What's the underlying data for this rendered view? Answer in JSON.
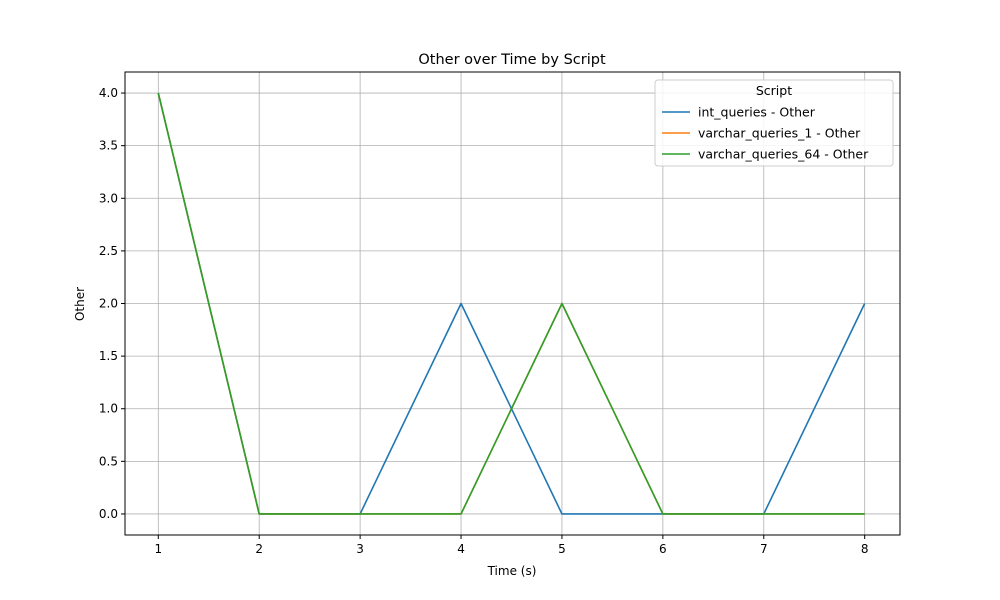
{
  "chart_data": {
    "type": "line",
    "title": "Other over Time by Script",
    "xlabel": "Time (s)",
    "ylabel": "Other",
    "xlim": [
      0.67,
      8.35
    ],
    "ylim": [
      -0.2,
      4.2
    ],
    "xticks": [
      "1",
      "2",
      "3",
      "4",
      "5",
      "6",
      "7",
      "8"
    ],
    "yticks": [
      "0.0",
      "0.5",
      "1.0",
      "1.5",
      "2.0",
      "2.5",
      "3.0",
      "3.5",
      "4.0"
    ],
    "grid": true,
    "legend": {
      "title": "Script",
      "position": "top-right"
    },
    "x": [
      1,
      2,
      3,
      4,
      5,
      6,
      7,
      8
    ],
    "series": [
      {
        "name": "int_queries - Other",
        "color": "#1f77b4",
        "values": [
          4,
          0,
          0,
          2,
          0,
          0,
          0,
          2
        ]
      },
      {
        "name": "varchar_queries_1 - Other",
        "color": "#ff7f0e",
        "values": [
          4,
          0,
          0,
          0,
          2,
          0,
          0,
          0
        ]
      },
      {
        "name": "varchar_queries_64 - Other",
        "color": "#2ca02c",
        "values": [
          4,
          0,
          0,
          0,
          2,
          0,
          0,
          0
        ]
      }
    ]
  }
}
